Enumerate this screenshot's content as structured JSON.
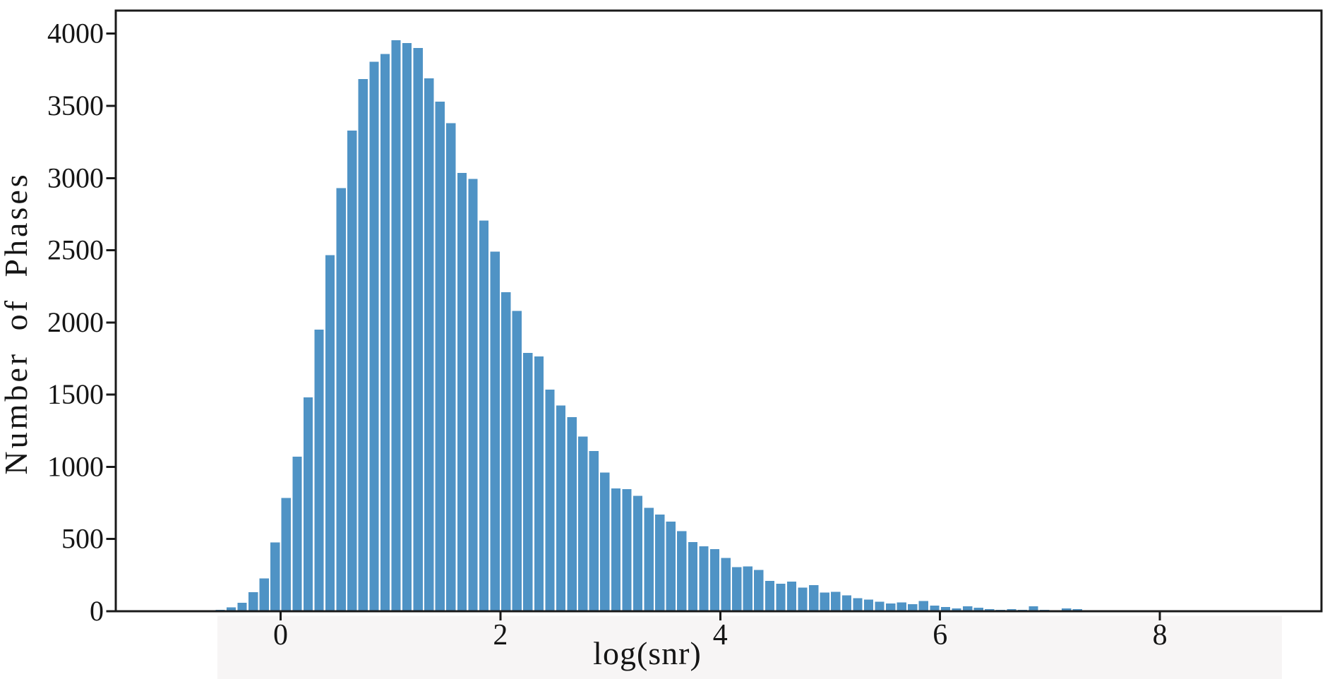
{
  "figure": {
    "background_color": "#ffffff",
    "footer_band_color": "#f7f5f5"
  },
  "chart_data": {
    "type": "bar",
    "subtype": "histogram",
    "title": "",
    "xlabel": "log(snr)",
    "ylabel": "Number of Phases",
    "bar_color": "#4f93c5",
    "axis_color": "#1a1a1a",
    "text_color": "#151515",
    "grid": false,
    "legend_position": "none",
    "bin_start": -0.8,
    "bin_width": 0.1,
    "values": [
      8,
      5,
      10,
      28,
      58,
      132,
      228,
      477,
      785,
      1070,
      1480,
      1950,
      2465,
      2930,
      3330,
      3685,
      3805,
      3860,
      3955,
      3935,
      3900,
      3690,
      3530,
      3380,
      3035,
      2995,
      2705,
      2490,
      2210,
      2080,
      1790,
      1765,
      1535,
      1425,
      1345,
      1210,
      1110,
      960,
      850,
      845,
      800,
      715,
      670,
      620,
      555,
      480,
      450,
      430,
      370,
      305,
      310,
      285,
      210,
      190,
      205,
      165,
      180,
      130,
      135,
      110,
      90,
      80,
      65,
      55,
      60,
      50,
      70,
      40,
      30,
      20,
      35,
      25,
      15,
      10,
      15,
      10,
      35,
      10,
      5,
      20,
      15,
      3,
      3,
      5,
      4,
      4,
      3
    ],
    "x_ticks": [
      0,
      2,
      4,
      6,
      8
    ],
    "y_ticks": [
      0,
      500,
      1000,
      1500,
      2000,
      2500,
      3000,
      3500,
      4000
    ],
    "xlim": [
      -1.5,
      9.47
    ],
    "ylim": [
      0,
      4160
    ]
  }
}
